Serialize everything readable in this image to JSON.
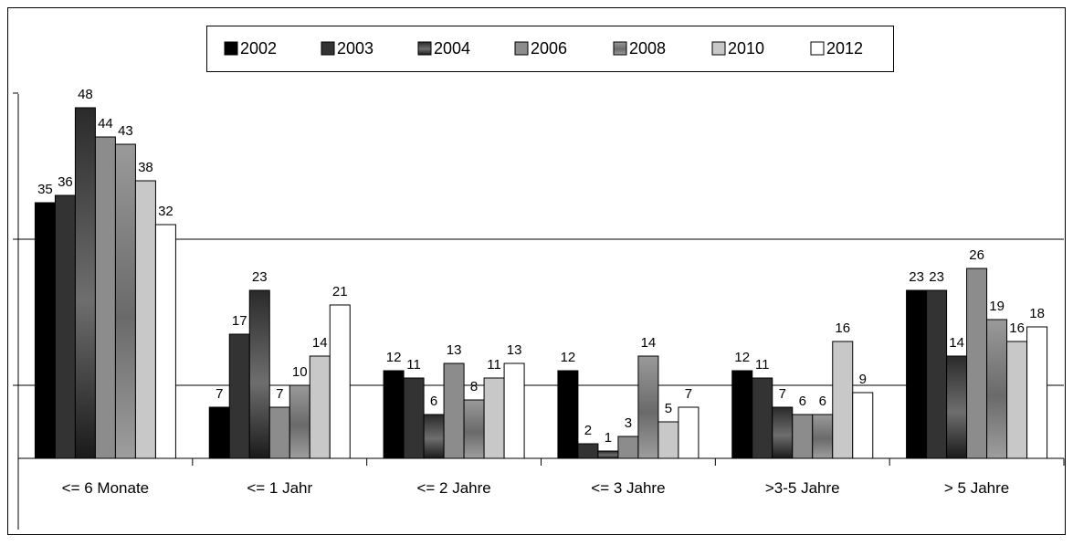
{
  "chart_data": {
    "type": "bar",
    "categories": [
      "<= 6 Monate",
      "<= 1 Jahr",
      "<= 2 Jahre",
      "<= 3 Jahre",
      ">3-5 Jahre",
      "> 5 Jahre"
    ],
    "series": [
      {
        "name": "2002",
        "values": [
          35,
          7,
          12,
          12,
          12,
          23
        ],
        "color": "#000000"
      },
      {
        "name": "2003",
        "values": [
          36,
          17,
          11,
          2,
          11,
          23
        ],
        "color": "#333333"
      },
      {
        "name": "2004",
        "values": [
          48,
          23,
          6,
          1,
          7,
          14
        ],
        "color": "gradient-dark"
      },
      {
        "name": "2006",
        "values": [
          44,
          7,
          13,
          3,
          6,
          26
        ],
        "color": "#8c8c8c"
      },
      {
        "name": "2008",
        "values": [
          43,
          10,
          8,
          14,
          6,
          19
        ],
        "color": "gradient-mid"
      },
      {
        "name": "2010",
        "values": [
          38,
          14,
          11,
          5,
          16,
          16
        ],
        "color": "#c8c8c8"
      },
      {
        "name": "2012",
        "values": [
          32,
          21,
          13,
          7,
          9,
          18
        ],
        "color": "#ffffff"
      }
    ],
    "title": "",
    "xlabel": "",
    "ylabel": "",
    "ylim": [
      0,
      50
    ],
    "gridlines": [
      10,
      30
    ],
    "legend": "top",
    "data_labels": [
      [
        "35",
        "36",
        "48",
        "44",
        "43",
        "38",
        "32"
      ],
      [
        "7",
        "17",
        "23",
        "7",
        "10",
        "14",
        "21"
      ],
      [
        "12",
        "11",
        "6",
        "13",
        "8",
        "11",
        "13"
      ],
      [
        "12",
        "2",
        "1",
        "3",
        "14",
        "5",
        "7"
      ],
      [
        "12",
        "11",
        "7",
        "6",
        "6",
        "16",
        "9"
      ],
      [
        "23",
        "23",
        "14",
        "26",
        "19",
        "16",
        "18"
      ]
    ]
  }
}
